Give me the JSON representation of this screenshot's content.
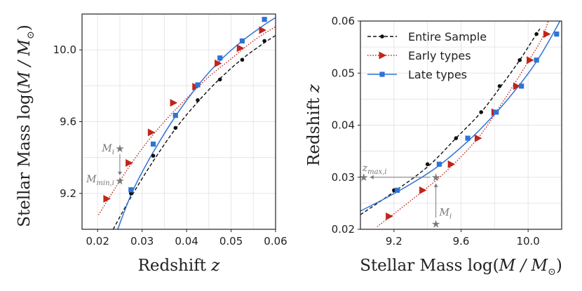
{
  "colors": {
    "all": "#111111",
    "early": "#c0251c",
    "late": "#2f73d6",
    "annot": "#7a7a7a"
  },
  "chart_data": [
    {
      "type": "line",
      "title": "",
      "xlabel": "Redshift ",
      "xlabel_var": "z",
      "ylabel": "Stellar Mass log(",
      "ylabel_var": "M / M",
      "ylabel_sub": "⊙",
      "ylabel_close": ")",
      "xlim": [
        0.0165,
        0.06
      ],
      "ylim": [
        9.0,
        10.2
      ],
      "xticks": [
        0.02,
        0.03,
        0.04,
        0.05,
        0.06
      ],
      "xtick_labels": [
        "0.02",
        "0.03",
        "0.04",
        "0.05",
        "0.06"
      ],
      "yticks": [
        9.2,
        9.6,
        10.0
      ],
      "ytick_labels": [
        "9.2",
        "9.6",
        "10.0"
      ],
      "series": [
        {
          "name": "Entire Sample",
          "key": "all",
          "marker": "circle",
          "linestyle": "dashed",
          "points": [
            [
              0.0275,
              9.2
            ],
            [
              0.0325,
              9.41
            ],
            [
              0.0375,
              9.565
            ],
            [
              0.0425,
              9.72
            ],
            [
              0.0475,
              9.835
            ],
            [
              0.0525,
              9.945
            ],
            [
              0.0575,
              10.05
            ]
          ],
          "curve": [
            [
              0.0235,
              9.0
            ],
            [
              0.0275,
              9.18
            ],
            [
              0.0325,
              9.38
            ],
            [
              0.0375,
              9.56
            ],
            [
              0.0425,
              9.71
            ],
            [
              0.0475,
              9.84
            ],
            [
              0.0525,
              9.95
            ],
            [
              0.0575,
              10.04
            ],
            [
              0.06,
              10.08
            ]
          ]
        },
        {
          "name": "Early types",
          "key": "early",
          "marker": "triangle-right",
          "linestyle": "dotted",
          "points": [
            [
              0.022,
              9.17
            ],
            [
              0.027,
              9.37
            ],
            [
              0.032,
              9.54
            ],
            [
              0.037,
              9.705
            ],
            [
              0.042,
              9.795
            ],
            [
              0.047,
              9.925
            ],
            [
              0.052,
              10.01
            ],
            [
              0.057,
              10.11
            ]
          ],
          "curve": [
            [
              0.0202,
              9.08
            ],
            [
              0.025,
              9.27
            ],
            [
              0.03,
              9.45
            ],
            [
              0.035,
              9.6
            ],
            [
              0.04,
              9.73
            ],
            [
              0.045,
              9.85
            ],
            [
              0.05,
              9.95
            ],
            [
              0.055,
              10.05
            ],
            [
              0.06,
              10.13
            ]
          ]
        },
        {
          "name": "Late types",
          "key": "late",
          "marker": "square",
          "linestyle": "solid",
          "points": [
            [
              0.0275,
              9.22
            ],
            [
              0.0325,
              9.475
            ],
            [
              0.0375,
              9.635
            ],
            [
              0.0425,
              9.805
            ],
            [
              0.0475,
              9.955
            ],
            [
              0.0525,
              10.05
            ],
            [
              0.0575,
              10.17
            ]
          ],
          "curve": [
            [
              0.0245,
              9.0
            ],
            [
              0.028,
              9.22
            ],
            [
              0.0325,
              9.43
            ],
            [
              0.0375,
              9.63
            ],
            [
              0.0425,
              9.8
            ],
            [
              0.0475,
              9.94
            ],
            [
              0.0525,
              10.05
            ],
            [
              0.0575,
              10.14
            ],
            [
              0.06,
              10.18
            ]
          ]
        }
      ],
      "annotations": {
        "M_i": {
          "label": "M",
          "sub": "i",
          "x": 0.025,
          "y": 9.45
        },
        "M_min": {
          "label": "M",
          "sub": "min,i",
          "x": 0.025,
          "y": 9.27
        }
      }
    },
    {
      "type": "line",
      "title": "",
      "xlabel": "Stellar Mass log(",
      "xlabel_var": "M / M",
      "xlabel_sub": "⊙",
      "xlabel_close": ")",
      "ylabel": "Redshift ",
      "ylabel_var": "z",
      "xlim": [
        9.0,
        10.2
      ],
      "ylim": [
        0.02,
        0.06
      ],
      "xticks": [
        9.2,
        9.6,
        10.0
      ],
      "xtick_labels": [
        "9.2",
        "9.6",
        "10.0"
      ],
      "yticks": [
        0.02,
        0.03,
        0.04,
        0.05,
        0.06
      ],
      "ytick_labels": [
        "0.02",
        "0.03",
        "0.04",
        "0.05",
        "0.06"
      ],
      "legend_position": "top-left",
      "series": [
        {
          "name": "Entire Sample",
          "key": "all",
          "marker": "circle",
          "linestyle": "dashed",
          "points": [
            [
              9.2,
              0.0275
            ],
            [
              9.4,
              0.0325
            ],
            [
              9.57,
              0.0375
            ],
            [
              9.72,
              0.0425
            ],
            [
              9.83,
              0.0475
            ],
            [
              9.95,
              0.0525
            ],
            [
              10.05,
              0.0575
            ]
          ],
          "curve": [
            [
              9.0,
              0.0228
            ],
            [
              9.2,
              0.0272
            ],
            [
              9.4,
              0.032
            ],
            [
              9.57,
              0.0375
            ],
            [
              9.72,
              0.0425
            ],
            [
              9.85,
              0.048
            ],
            [
              9.95,
              0.0525
            ],
            [
              10.03,
              0.0565
            ],
            [
              10.07,
              0.0585
            ]
          ]
        },
        {
          "name": "Early types",
          "key": "early",
          "marker": "triangle-right",
          "linestyle": "dotted",
          "points": [
            [
              9.17,
              0.0225
            ],
            [
              9.37,
              0.0275
            ],
            [
              9.54,
              0.0325
            ],
            [
              9.7,
              0.0375
            ],
            [
              9.8,
              0.0425
            ],
            [
              9.93,
              0.0475
            ],
            [
              10.01,
              0.0525
            ],
            [
              10.11,
              0.0575
            ]
          ],
          "curve": [
            [
              9.1,
              0.0205
            ],
            [
              9.3,
              0.0255
            ],
            [
              9.5,
              0.0308
            ],
            [
              9.7,
              0.0375
            ],
            [
              9.85,
              0.0445
            ],
            [
              10.0,
              0.0522
            ],
            [
              10.08,
              0.0565
            ],
            [
              10.12,
              0.06
            ]
          ]
        },
        {
          "name": "Late types",
          "key": "late",
          "marker": "square",
          "linestyle": "solid",
          "points": [
            [
              9.22,
              0.0275
            ],
            [
              9.47,
              0.0325
            ],
            [
              9.64,
              0.0375
            ],
            [
              9.81,
              0.0425
            ],
            [
              9.96,
              0.0475
            ],
            [
              10.05,
              0.0525
            ],
            [
              10.17,
              0.0575
            ]
          ],
          "curve": [
            [
              9.0,
              0.0235
            ],
            [
              9.22,
              0.0272
            ],
            [
              9.45,
              0.0318
            ],
            [
              9.65,
              0.0372
            ],
            [
              9.82,
              0.0428
            ],
            [
              9.95,
              0.0478
            ],
            [
              10.05,
              0.0522
            ],
            [
              10.13,
              0.0565
            ],
            [
              10.19,
              0.06
            ]
          ]
        }
      ],
      "annotations": {
        "z_max": {
          "label": "z",
          "sub": "max,i",
          "x": 9.02,
          "y": 0.03
        },
        "M_i": {
          "label": "M",
          "sub": "i",
          "x": 9.45,
          "y": 0.021
        },
        "star_x": 9.45,
        "star_y": 0.03
      }
    }
  ]
}
